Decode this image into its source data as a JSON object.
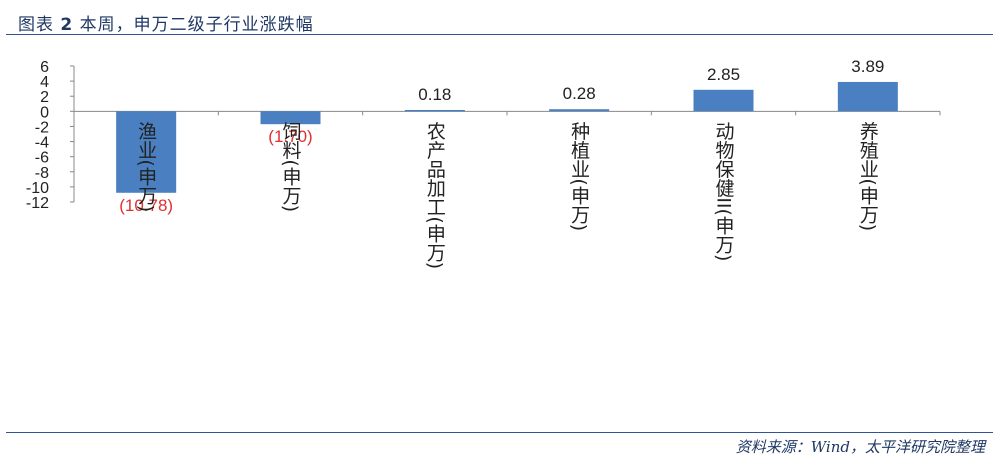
{
  "title": {
    "prefix": "图表",
    "number": "2",
    "text": "本周，申万二级子行业涨跌幅"
  },
  "source": "资料来源：Wind，太平洋研究院整理",
  "colors": {
    "bar": "#4a7fc1",
    "negative_label": "#e03030",
    "positive_label": "#222222",
    "axis": "#888888",
    "title": "#1f3864"
  },
  "chart_data": {
    "type": "bar",
    "categories": [
      "渔业(申万)",
      "饲料(申万)",
      "农产品加工(申万)",
      "种植业(申万)",
      "动物保健II(申万)",
      "养殖业(申万)"
    ],
    "values": [
      -10.78,
      -1.7,
      0.18,
      0.28,
      2.85,
      3.89
    ],
    "data_labels": [
      "(10.78)",
      "(1.70)",
      "0.18",
      "0.28",
      "2.85",
      "3.89"
    ],
    "yticks": [
      "6",
      "4",
      "2",
      "0",
      "-2",
      "-4",
      "-6",
      "-8",
      "-10",
      "-12"
    ],
    "ylim": [
      -12,
      6
    ],
    "grid": false
  }
}
